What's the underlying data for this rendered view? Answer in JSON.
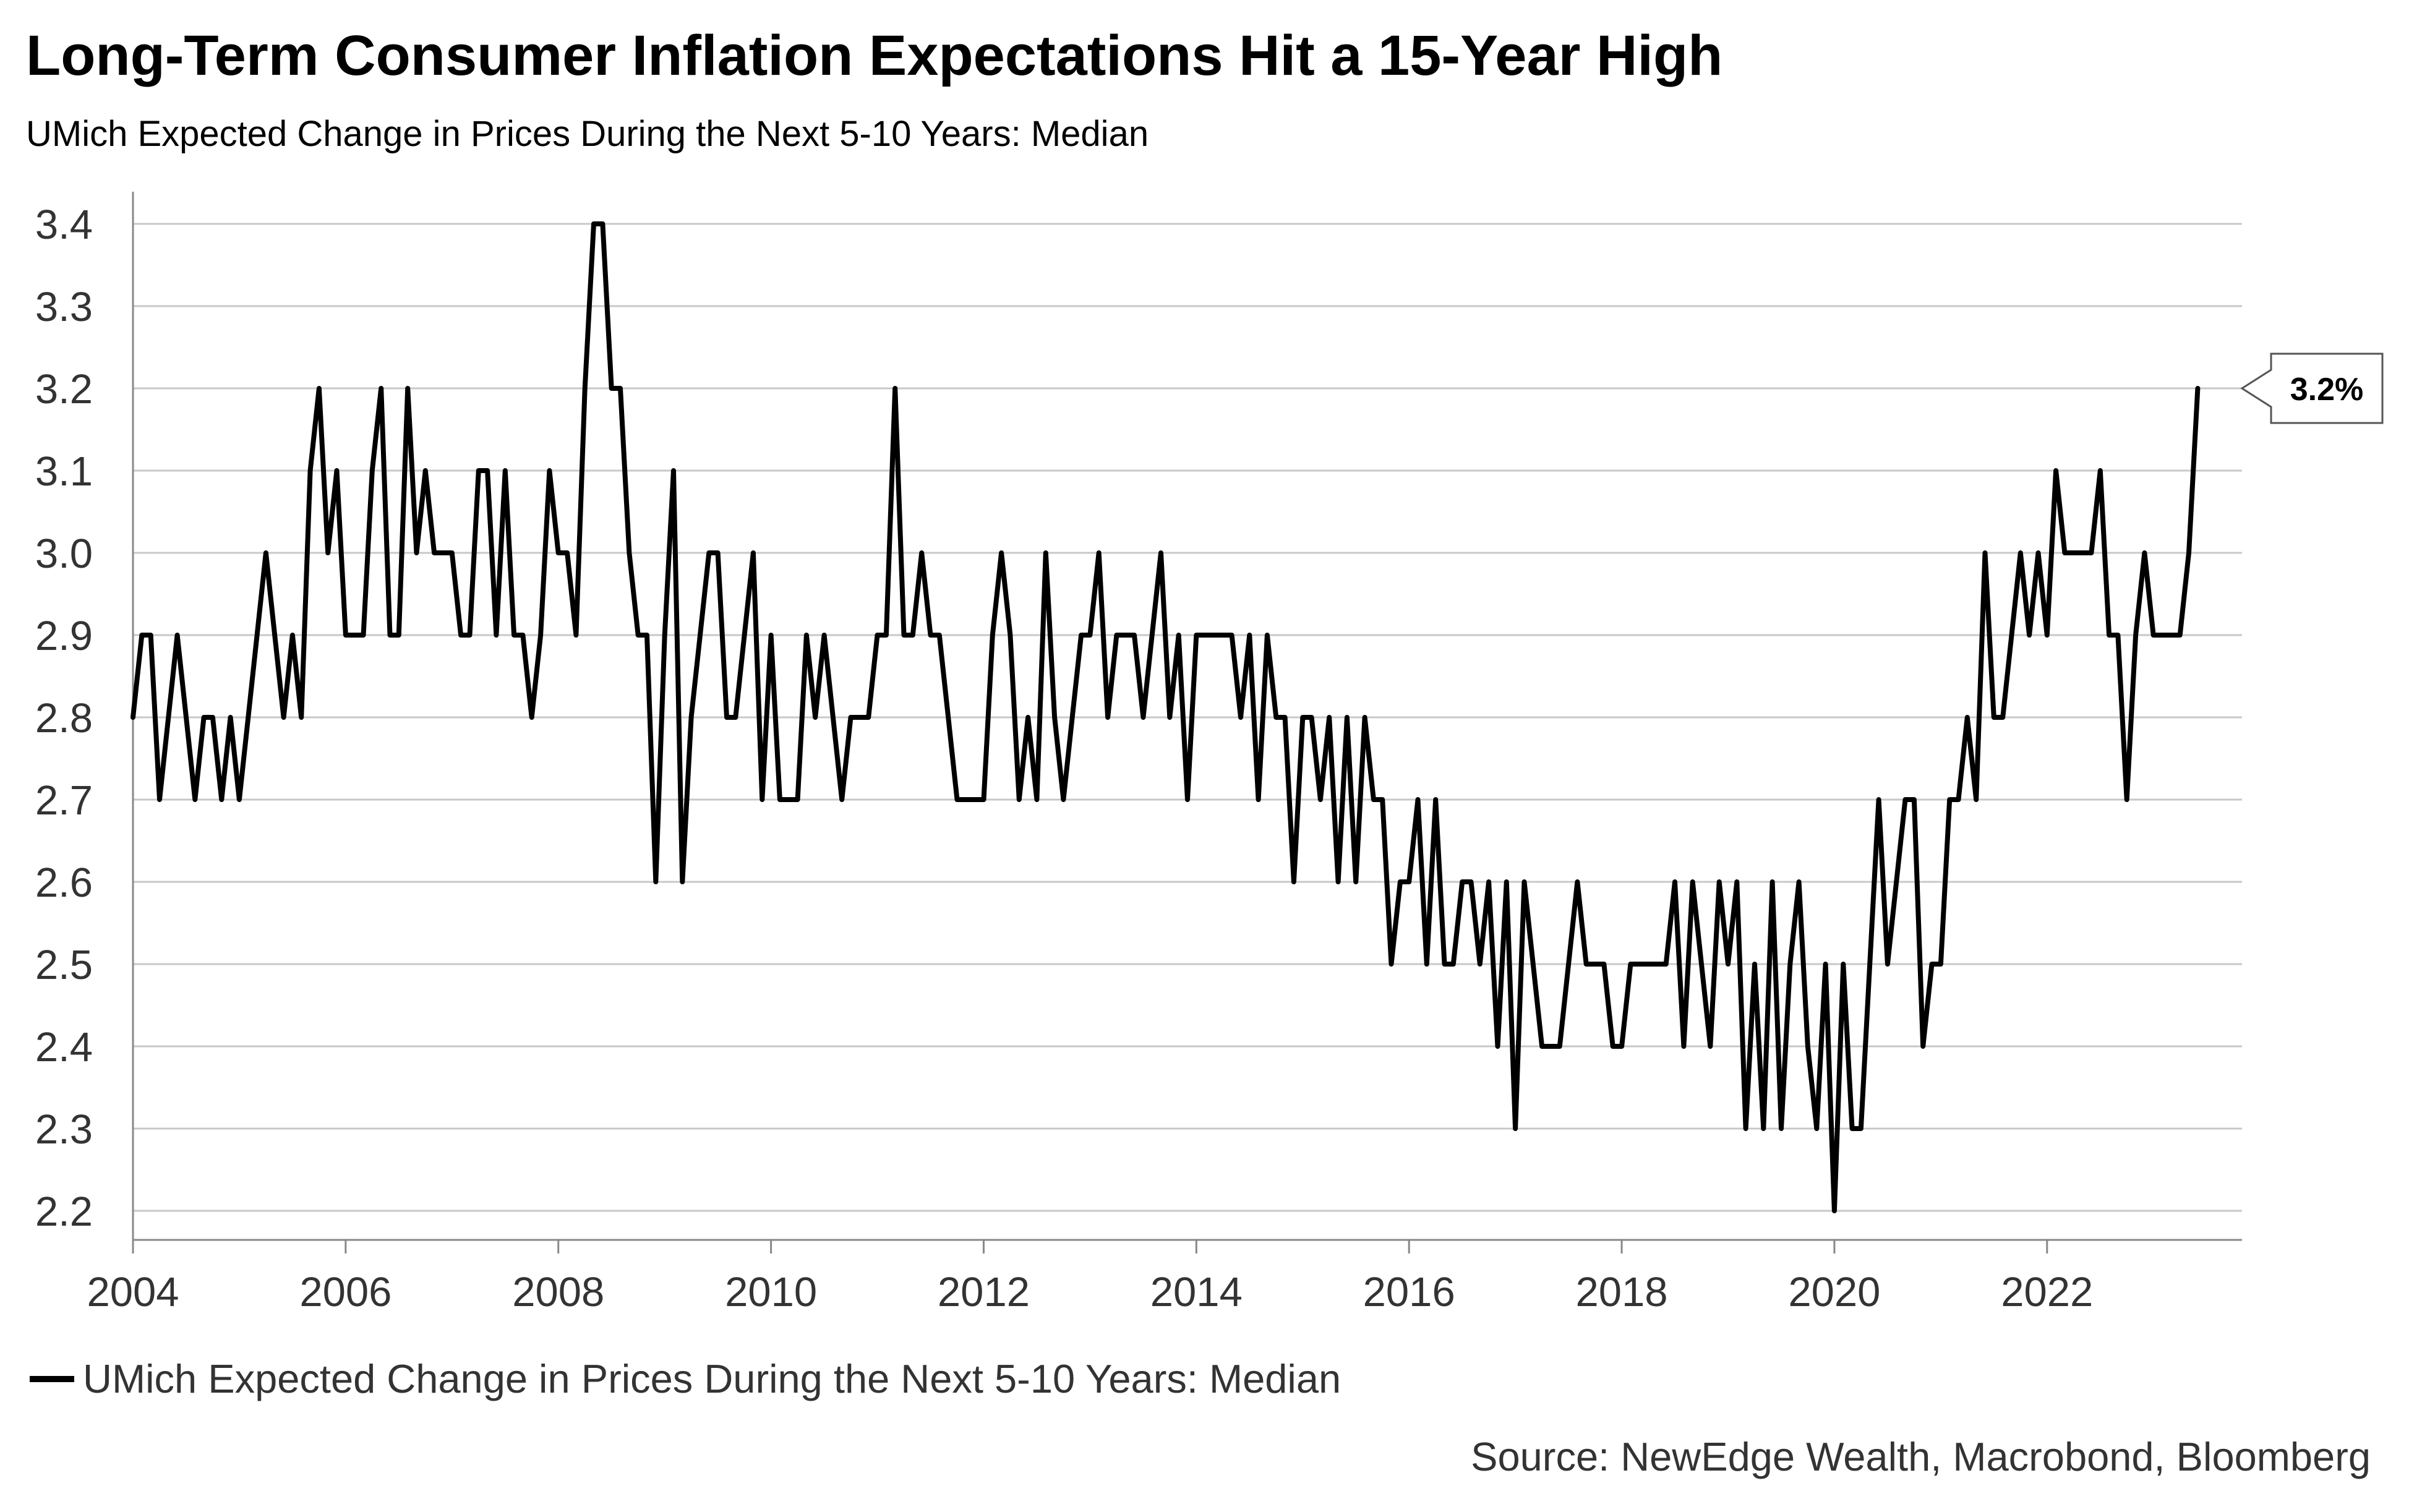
{
  "chart_data": {
    "type": "line",
    "title": "Long-Term Consumer Inflation Expectations Hit a 15-Year High",
    "subtitle": "UMich Expected Change in Prices During the Next 5-10 Years: Median",
    "source": "Source: NewEdge Wealth, Macrobond, Bloomberg",
    "ylim": [
      2.2,
      3.4
    ],
    "yticks": [
      "2.2",
      "2.3",
      "2.4",
      "2.5",
      "2.6",
      "2.7",
      "2.8",
      "2.9",
      "3.0",
      "3.1",
      "3.2",
      "3.3",
      "3.4"
    ],
    "xlim": [
      "2004-01",
      "2023-11"
    ],
    "xticks": [
      "2004",
      "2006",
      "2008",
      "2010",
      "2012",
      "2014",
      "2016",
      "2018",
      "2020",
      "2022"
    ],
    "grid": true,
    "legend_position": "bottom-left",
    "callout": {
      "label": "3.2%",
      "value": 3.2
    },
    "series": [
      {
        "name": "UMich Expected Change in Prices During the Next 5-10 Years: Median",
        "color": "#000000",
        "start": "2004-01",
        "frequency": "monthly",
        "values": [
          2.8,
          2.9,
          2.9,
          2.7,
          2.8,
          2.9,
          2.8,
          2.7,
          2.8,
          2.8,
          2.7,
          2.8,
          2.7,
          2.8,
          2.9,
          3.0,
          2.9,
          2.8,
          2.9,
          2.8,
          3.1,
          3.2,
          3.0,
          3.1,
          2.9,
          2.9,
          2.9,
          3.1,
          3.2,
          2.9,
          2.9,
          3.2,
          3.0,
          3.1,
          3.0,
          3.0,
          3.0,
          2.9,
          2.9,
          3.1,
          3.1,
          2.9,
          3.1,
          2.9,
          2.9,
          2.8,
          2.9,
          3.1,
          3.0,
          3.0,
          2.9,
          3.2,
          3.4,
          3.4,
          3.2,
          3.2,
          3.0,
          2.9,
          2.9,
          2.6,
          2.9,
          3.1,
          2.6,
          2.8,
          2.9,
          3.0,
          3.0,
          2.8,
          2.8,
          2.9,
          3.0,
          2.7,
          2.9,
          2.7,
          2.7,
          2.7,
          2.9,
          2.8,
          2.9,
          2.8,
          2.7,
          2.8,
          2.8,
          2.8,
          2.9,
          2.9,
          3.2,
          2.9,
          2.9,
          3.0,
          2.9,
          2.9,
          2.8,
          2.7,
          2.7,
          2.7,
          2.7,
          2.9,
          3.0,
          2.9,
          2.7,
          2.8,
          2.7,
          3.0,
          2.8,
          2.7,
          2.8,
          2.9,
          2.9,
          3.0,
          2.8,
          2.9,
          2.9,
          2.9,
          2.8,
          2.9,
          3.0,
          2.8,
          2.9,
          2.7,
          2.9,
          2.9,
          2.9,
          2.9,
          2.9,
          2.8,
          2.9,
          2.7,
          2.9,
          2.8,
          2.8,
          2.6,
          2.8,
          2.8,
          2.7,
          2.8,
          2.6,
          2.8,
          2.6,
          2.8,
          2.7,
          2.7,
          2.5,
          2.6,
          2.6,
          2.7,
          2.5,
          2.7,
          2.5,
          2.5,
          2.6,
          2.6,
          2.5,
          2.6,
          2.4,
          2.6,
          2.3,
          2.6,
          2.5,
          2.4,
          2.4,
          2.4,
          2.5,
          2.6,
          2.5,
          2.5,
          2.5,
          2.4,
          2.4,
          2.5,
          2.5,
          2.5,
          2.5,
          2.5,
          2.6,
          2.4,
          2.6,
          2.5,
          2.4,
          2.6,
          2.5,
          2.6,
          2.3,
          2.5,
          2.3,
          2.6,
          2.3,
          2.5,
          2.6,
          2.4,
          2.3,
          2.5,
          2.2,
          2.5,
          2.3,
          2.3,
          2.5,
          2.7,
          2.5,
          2.6,
          2.7,
          2.7,
          2.4,
          2.5,
          2.5,
          2.7,
          2.7,
          2.8,
          2.7,
          3.0,
          2.8,
          2.8,
          2.9,
          3.0,
          2.9,
          3.0,
          2.9,
          3.1,
          3.0,
          3.0,
          3.0,
          3.0,
          3.1,
          2.9,
          2.9,
          2.7,
          2.9,
          3.0,
          2.9,
          2.9,
          2.9,
          2.9,
          3.0,
          3.2
        ]
      }
    ]
  }
}
